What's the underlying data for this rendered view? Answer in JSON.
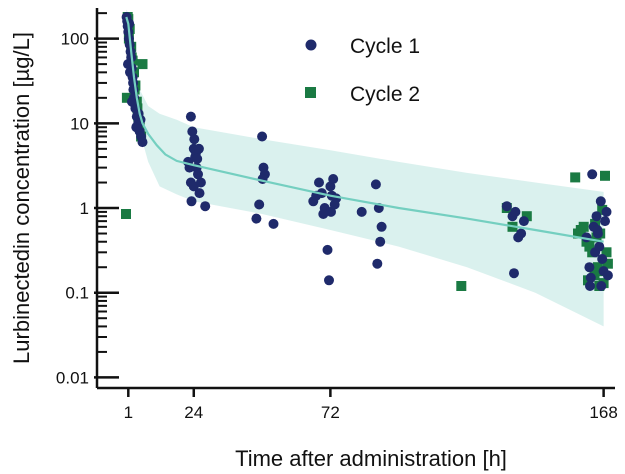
{
  "chart_data": {
    "type": "scatter",
    "title": "",
    "xlabel": "Time after administration [h]",
    "ylabel": "Lurbinectedin concentration [µg/L]",
    "x_ticks": [
      1,
      24,
      72,
      168
    ],
    "y_ticks": [
      0.01,
      0.1,
      1,
      10,
      100
    ],
    "y_tick_labels": [
      "0.01",
      "0.1",
      "1",
      "10",
      "100"
    ],
    "x_scale": "linear",
    "y_scale": "log",
    "xlim": [
      -10,
      172
    ],
    "ylim": [
      0.0075,
      230
    ],
    "grid": false,
    "legend_position": "top-center",
    "colors": {
      "cycle1": "#1f2a6b",
      "cycle2": "#1a7a43",
      "median": "#74cfc0",
      "band": "#d4efeb"
    },
    "series": [
      {
        "name": "Cycle 1",
        "marker": "circle",
        "points": [
          [
            0.4,
            180
          ],
          [
            0.6,
            160
          ],
          [
            0.8,
            140
          ],
          [
            1.0,
            120
          ],
          [
            1.2,
            100
          ],
          [
            1.5,
            85
          ],
          [
            1.8,
            70
          ],
          [
            2.0,
            60
          ],
          [
            2.2,
            45
          ],
          [
            2.5,
            35
          ],
          [
            2.8,
            25
          ],
          [
            3.0,
            20
          ],
          [
            3.5,
            15
          ],
          [
            4.0,
            12
          ],
          [
            4.5,
            10
          ],
          [
            5.0,
            8
          ],
          [
            5.5,
            7
          ],
          [
            6.0,
            6
          ],
          [
            0.9,
            50
          ],
          [
            1.6,
            40
          ],
          [
            2.3,
            18
          ],
          [
            3.8,
            9
          ],
          [
            4.6,
            13
          ],
          [
            5.3,
            11
          ],
          [
            1.3,
            150
          ],
          [
            2.7,
            30
          ],
          [
            22,
            3.5
          ],
          [
            23,
            12
          ],
          [
            23.5,
            8
          ],
          [
            24,
            5
          ],
          [
            24.5,
            4
          ],
          [
            25,
            3
          ],
          [
            23,
            2
          ],
          [
            24,
            1.8
          ],
          [
            25.5,
            2.5
          ],
          [
            26,
            1.5
          ],
          [
            23.2,
            1.2
          ],
          [
            24.8,
            4.5
          ],
          [
            25.2,
            3.8
          ],
          [
            22.5,
            3
          ],
          [
            26.5,
            2
          ],
          [
            28,
            1.05
          ],
          [
            24.2,
            6.5
          ],
          [
            25.8,
            5
          ],
          [
            46,
            0.75
          ],
          [
            47,
            1.1
          ],
          [
            48,
            7
          ],
          [
            48.5,
            3
          ],
          [
            49,
            2.5
          ],
          [
            48.2,
            2.2
          ],
          [
            52,
            0.65
          ],
          [
            66,
            1.2
          ],
          [
            68,
            2
          ],
          [
            69,
            1.5
          ],
          [
            70,
            1
          ],
          [
            71,
            0.32
          ],
          [
            71.5,
            0.14
          ],
          [
            72,
            1.8
          ],
          [
            72.5,
            1.4
          ],
          [
            73,
            2.2
          ],
          [
            74,
            1.3
          ],
          [
            72.2,
            0.9
          ],
          [
            69.5,
            0.85
          ],
          [
            73.5,
            1.1
          ],
          [
            67,
            1.4
          ],
          [
            83,
            0.9
          ],
          [
            88,
            1.9
          ],
          [
            89,
            1
          ],
          [
            90,
            0.6
          ],
          [
            89.5,
            0.4
          ],
          [
            88.5,
            0.22
          ],
          [
            134,
            1.05
          ],
          [
            136,
            0.8
          ],
          [
            138,
            0.45
          ],
          [
            136.5,
            0.17
          ],
          [
            139,
            0.5
          ],
          [
            140,
            0.7
          ],
          [
            137,
            0.9
          ],
          [
            162,
            0.45
          ],
          [
            163,
            0.2
          ],
          [
            163.5,
            0.15
          ],
          [
            164,
            2.5
          ],
          [
            164.5,
            0.6
          ],
          [
            165,
            0.3
          ],
          [
            165.5,
            0.8
          ],
          [
            166,
            0.5
          ],
          [
            166.5,
            0.35
          ],
          [
            167,
            1.2
          ],
          [
            167.5,
            0.25
          ],
          [
            168,
            0.18
          ],
          [
            168.5,
            0.7
          ],
          [
            169,
            0.9
          ],
          [
            169.5,
            0.16
          ],
          [
            163.2,
            0.12
          ],
          [
            165.8,
            0.55
          ],
          [
            167.2,
            0.12
          ]
        ]
      },
      {
        "name": "Cycle 2",
        "marker": "square",
        "points": [
          [
            0.2,
            0.85
          ],
          [
            0.5,
            20
          ],
          [
            0.8,
            180
          ],
          [
            1.0,
            170
          ],
          [
            1.5,
            130
          ],
          [
            2.0,
            80
          ],
          [
            2.5,
            55
          ],
          [
            3.0,
            40
          ],
          [
            3.5,
            28
          ],
          [
            4.0,
            18
          ],
          [
            4.5,
            12
          ],
          [
            5.0,
            9
          ],
          [
            5.5,
            7
          ],
          [
            6.0,
            50
          ],
          [
            1.2,
            100
          ],
          [
            2.2,
            60
          ],
          [
            3.2,
            25
          ],
          [
            4.2,
            15
          ],
          [
            118,
            0.12
          ],
          [
            134,
            1
          ],
          [
            136,
            0.6
          ],
          [
            141,
            0.8
          ],
          [
            158,
            2.3
          ],
          [
            159,
            0.5
          ],
          [
            160,
            0.55
          ],
          [
            161,
            0.6
          ],
          [
            162,
            0.4
          ],
          [
            163,
            0.35
          ],
          [
            164,
            0.3
          ],
          [
            165,
            0.65
          ],
          [
            165.5,
            0.45
          ],
          [
            166,
            0.2
          ],
          [
            166.5,
            0.12
          ],
          [
            167,
            0.18
          ],
          [
            167.5,
            0.95
          ],
          [
            168,
            0.13
          ],
          [
            168.5,
            2.4
          ],
          [
            169,
            0.3
          ],
          [
            169.5,
            0.22
          ],
          [
            162.5,
            0.14
          ],
          [
            164.8,
            0.16
          ],
          [
            166.8,
            0.5
          ]
        ]
      }
    ],
    "median_line": [
      [
        0.3,
        180
      ],
      [
        1,
        150
      ],
      [
        2,
        70
      ],
      [
        3,
        35
      ],
      [
        4,
        20
      ],
      [
        5,
        13
      ],
      [
        6,
        10
      ],
      [
        8,
        7.5
      ],
      [
        11,
        5.5
      ],
      [
        14,
        4.3
      ],
      [
        18,
        3.6
      ],
      [
        24,
        3.2
      ],
      [
        36,
        2.6
      ],
      [
        48,
        2.1
      ],
      [
        72,
        1.4
      ],
      [
        96,
        1.0
      ],
      [
        120,
        0.75
      ],
      [
        144,
        0.55
      ],
      [
        168,
        0.4
      ]
    ],
    "band_upper": [
      [
        0.3,
        220
      ],
      [
        1,
        200
      ],
      [
        2,
        100
      ],
      [
        3,
        55
      ],
      [
        5,
        25
      ],
      [
        8,
        16
      ],
      [
        12,
        13
      ],
      [
        18,
        11
      ],
      [
        24,
        9
      ],
      [
        48,
        6.5
      ],
      [
        72,
        4.8
      ],
      [
        96,
        3.5
      ],
      [
        120,
        2.6
      ],
      [
        144,
        2
      ],
      [
        168,
        1.55
      ]
    ],
    "band_lower": [
      [
        0.3,
        140
      ],
      [
        1,
        90
      ],
      [
        2,
        40
      ],
      [
        3,
        20
      ],
      [
        5,
        8
      ],
      [
        8,
        3.5
      ],
      [
        12,
        1.8
      ],
      [
        18,
        1.45
      ],
      [
        24,
        1.2
      ],
      [
        48,
        0.85
      ],
      [
        72,
        0.55
      ],
      [
        96,
        0.35
      ],
      [
        120,
        0.2
      ],
      [
        144,
        0.1
      ],
      [
        168,
        0.04
      ]
    ]
  }
}
